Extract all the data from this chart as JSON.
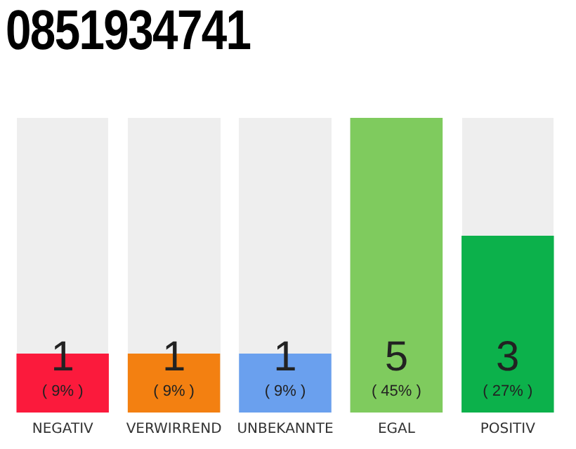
{
  "chart_data": {
    "type": "bar",
    "title": "0851934741",
    "categories": [
      "NEGATIV",
      "VERWIRREND",
      "UNBEKANNTE",
      "EGAL",
      "POSITIV"
    ],
    "values": [
      1,
      1,
      1,
      5,
      3
    ],
    "colors": [
      "#fb1a3c",
      "#f38011",
      "#6aa0ee",
      "#7fcb5e",
      "#0cb14b"
    ],
    "data_labels": true,
    "annotations": [
      "( 9% )",
      "( 9% )",
      "( 9% )",
      "( 45% )",
      "( 27% )"
    ],
    "grid": false,
    "legend": false
  }
}
